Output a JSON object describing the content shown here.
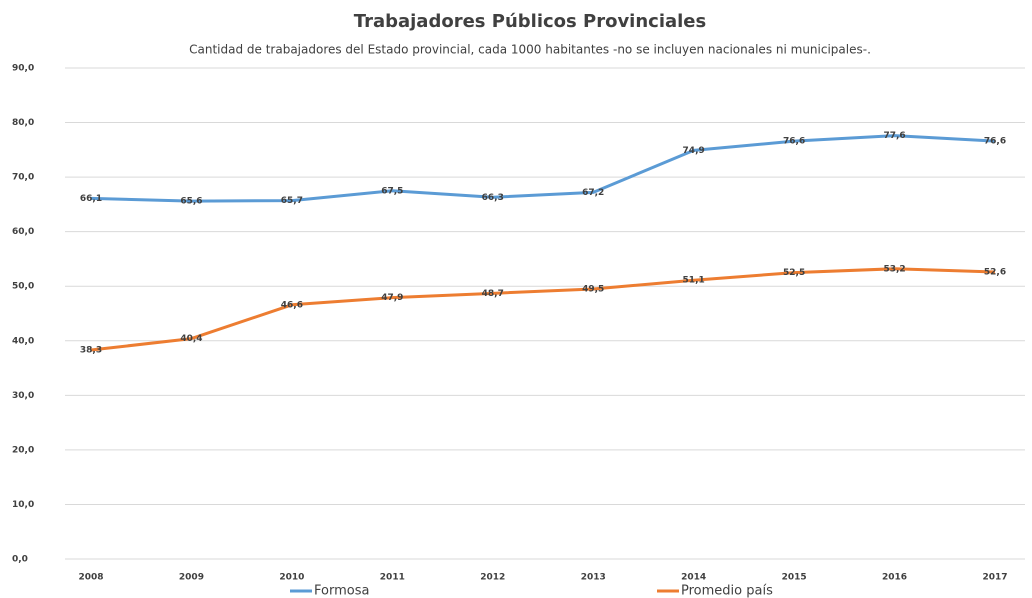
{
  "chart_data": {
    "type": "line",
    "title": "Trabajadores Públicos Provinciales",
    "subtitle": "Cantidad de trabajadores del Estado provincial, cada 1000 habitantes -no se incluyen nacionales ni municipales-.",
    "categories": [
      "2008",
      "2009",
      "2010",
      "2011",
      "2012",
      "2013",
      "2014",
      "2015",
      "2016",
      "2017"
    ],
    "series": [
      {
        "name": "Formosa",
        "color": "#5b9bd5",
        "values": [
          66.1,
          65.6,
          65.7,
          67.5,
          66.3,
          67.2,
          74.9,
          76.6,
          77.6,
          76.6
        ],
        "value_labels": [
          "66,1",
          "65,6",
          "65,7",
          "67,5",
          "66,3",
          "67,2",
          "74,9",
          "76,6",
          "77,6",
          "76,6"
        ]
      },
      {
        "name": "Promedio país",
        "color": "#ed7d31",
        "values": [
          38.3,
          40.4,
          46.6,
          47.9,
          48.7,
          49.5,
          51.1,
          52.5,
          53.2,
          52.6
        ],
        "value_labels": [
          "38,3",
          "40,4",
          "46,6",
          "47,9",
          "48,7",
          "49,5",
          "51,1",
          "52,5",
          "53,2",
          "52,6"
        ]
      }
    ],
    "ylim": [
      0,
      90
    ],
    "yticks": [
      {
        "value": 0,
        "label": "0,0"
      },
      {
        "value": 10,
        "label": "10,0"
      },
      {
        "value": 20,
        "label": "20,0"
      },
      {
        "value": 30,
        "label": "30,0"
      },
      {
        "value": 40,
        "label": "40,0"
      },
      {
        "value": 50,
        "label": "50,0"
      },
      {
        "value": 60,
        "label": "60,0"
      },
      {
        "value": 70,
        "label": "70,0"
      },
      {
        "value": 80,
        "label": "80,0"
      },
      {
        "value": 90,
        "label": "90,0"
      }
    ],
    "grid": true,
    "legend": "bottom"
  }
}
